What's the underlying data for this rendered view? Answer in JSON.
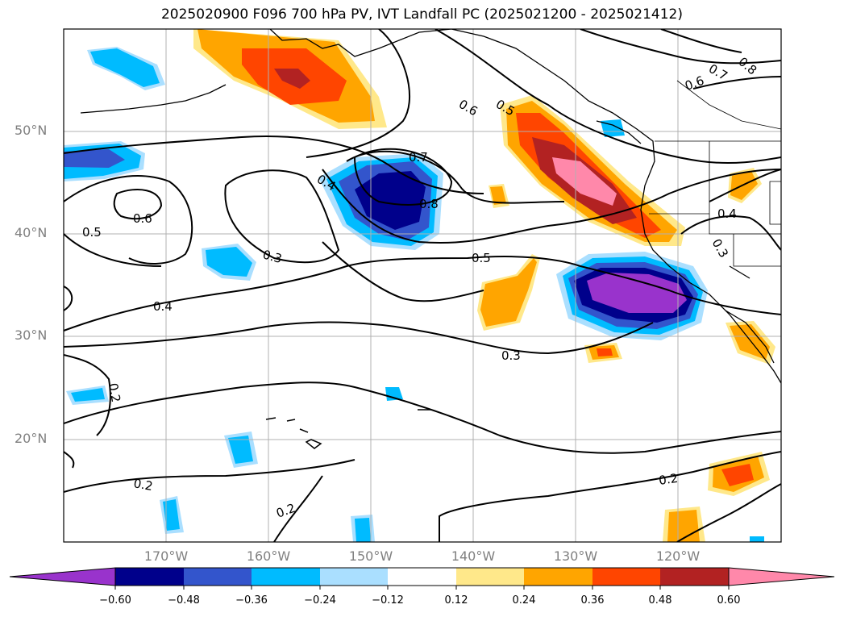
{
  "title": "2025020900 F096 700 hPa PV, IVT Landfall PC (2025021200 - 2025021412)",
  "lat_labels": [
    "50°N",
    "40°N",
    "30°N",
    "20°N"
  ],
  "lon_labels": [
    "170°W",
    "160°W",
    "150°W",
    "140°W",
    "130°W",
    "120°W"
  ],
  "contour_labels": [
    "0.8",
    "0.7",
    "0.6",
    "0.6",
    "0.5",
    "0.5",
    "0.5",
    "0.4",
    "0.4",
    "0.4",
    "0.3",
    "0.3",
    "0.3",
    "0.2",
    "0.2",
    "0.2",
    "0.2",
    "0.6",
    "0.7",
    "0.8",
    "0.5",
    "0.4",
    "0.3"
  ],
  "colorbar": {
    "ticks": [
      "−0.60",
      "−0.48",
      "−0.36",
      "−0.24",
      "−0.12",
      "0.12",
      "0.24",
      "0.36",
      "0.48",
      "0.60"
    ],
    "colors": [
      "#9933cc",
      "#00008b",
      "#3355cc",
      "#00bbff",
      "#aadfff",
      "#ffffff",
      "#ffe88a",
      "#ffa500",
      "#ff4500",
      "#b22222",
      "#ff88aa"
    ]
  },
  "map_extent": {
    "lon_range": [
      "180°W",
      "110°W"
    ],
    "lat_range": [
      "10°N",
      "60°N"
    ]
  }
}
